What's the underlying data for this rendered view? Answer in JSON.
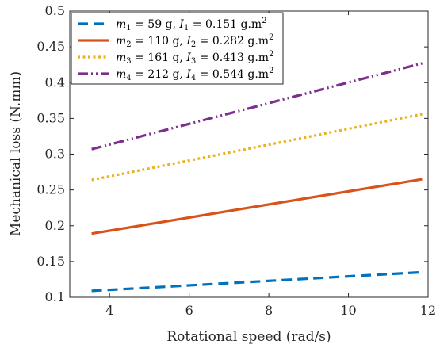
{
  "chart_data": {
    "type": "line",
    "xlabel": "Rotational speed (rad/s)",
    "ylabel": "Mechanical loss (N.mm)",
    "xlim": [
      3,
      12
    ],
    "ylim": [
      0.1,
      0.5
    ],
    "xticks": [
      4,
      6,
      8,
      10,
      12
    ],
    "yticks": [
      0.1,
      0.15,
      0.2,
      0.25,
      0.3,
      0.35,
      0.4,
      0.45,
      0.5
    ],
    "xtick_labels": [
      "4",
      "6",
      "8",
      "10",
      "12"
    ],
    "ytick_labels": [
      "0.1",
      "0.15",
      "0.2",
      "0.25",
      "0.3",
      "0.35",
      "0.4",
      "0.45",
      "0.5"
    ],
    "legend_position": "top-left",
    "grid": false,
    "series": [
      {
        "legend": {
          "m": "m",
          "m_sub": "1",
          "mval": " = 59 g, ",
          "i": "I",
          "i_sub": "1",
          "ival": " = 0.151 g.m",
          "sup": "2"
        },
        "color": "#0072BD",
        "dash": "dashed",
        "x": [
          3.55,
          11.85
        ],
        "y": [
          0.109,
          0.135
        ]
      },
      {
        "legend": {
          "m": "m",
          "m_sub": "2",
          "mval": " = 110 g, ",
          "i": "I",
          "i_sub": "2",
          "ival": " = 0.282 g.m",
          "sup": "2"
        },
        "color": "#D95319",
        "dash": "solid",
        "x": [
          3.55,
          11.85
        ],
        "y": [
          0.189,
          0.265
        ]
      },
      {
        "legend": {
          "m": "m",
          "m_sub": "3",
          "mval": " = 161 g, ",
          "i": "I",
          "i_sub": "3",
          "ival": " = 0.413 g.m",
          "sup": "2"
        },
        "color": "#EDB120",
        "dash": "dotted",
        "x": [
          3.55,
          11.85
        ],
        "y": [
          0.264,
          0.356
        ]
      },
      {
        "legend": {
          "m": "m",
          "m_sub": "4",
          "mval": " = 212 g, ",
          "i": "I",
          "i_sub": "4",
          "ival": " = 0.544 g.m",
          "sup": "2"
        },
        "color": "#7E2F8E",
        "dash": "dashdot",
        "x": [
          3.55,
          11.85
        ],
        "y": [
          0.307,
          0.427
        ]
      }
    ]
  }
}
